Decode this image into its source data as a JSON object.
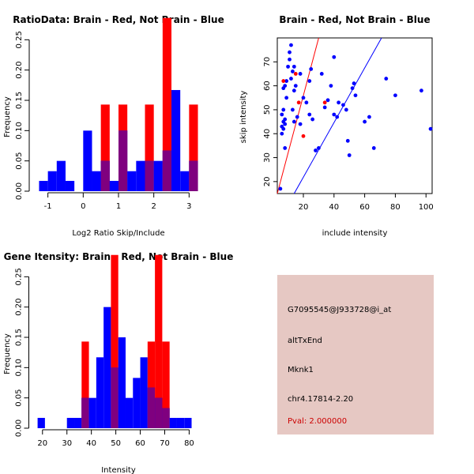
{
  "colors": {
    "red": "#ff0000",
    "blue": "#0000ff",
    "purple": "#7f007f",
    "panel_bg": "#e6c8c3",
    "pval": "#cc0000"
  },
  "chart_data": [
    {
      "type": "bar",
      "title": "RatioData: Brain - Red, Not Brain - Blue",
      "xlabel": "Log2 Ratio Skip/Include",
      "ylabel": "Frequency",
      "xlim": [
        -1.35,
        3.35
      ],
      "ylim": [
        0,
        0.3
      ],
      "xticks": [
        -1,
        0,
        1,
        2,
        3
      ],
      "yticks": [
        0.0,
        0.05,
        0.1,
        0.15,
        0.2,
        0.25
      ],
      "ytick_labels": [
        "0.00",
        "0.05",
        "0.10",
        "0.15",
        "0.20",
        "0.25"
      ],
      "bin_edges": [
        -1.25,
        -1.0,
        -0.75,
        -0.5,
        -0.25,
        0.0,
        0.25,
        0.5,
        0.75,
        1.0,
        1.25,
        1.5,
        1.75,
        2.0,
        2.25,
        2.5,
        2.75,
        3.0,
        3.25
      ],
      "series": [
        {
          "name": "Brain",
          "color": "red",
          "values": [
            0,
            0,
            0,
            0,
            0,
            0,
            0,
            0.143,
            0,
            0.143,
            0,
            0,
            0.143,
            0,
            0.286,
            0,
            0,
            0.143
          ]
        },
        {
          "name": "Not Brain",
          "color": "blue",
          "values": [
            0.017,
            0.033,
            0.05,
            0.017,
            0,
            0.1,
            0.033,
            0.05,
            0.017,
            0.1,
            0.033,
            0.05,
            0.05,
            0.05,
            0.067,
            0.167,
            0.033,
            0.05
          ]
        }
      ]
    },
    {
      "type": "scatter",
      "title": "Brain - Red, Not Brain - Blue",
      "xlabel": "include intensity",
      "ylabel": "skip intensity",
      "xlim": [
        3,
        104
      ],
      "ylim": [
        15,
        80
      ],
      "xticks": [
        20,
        40,
        60,
        80,
        100
      ],
      "yticks": [
        20,
        30,
        40,
        50,
        60,
        70
      ],
      "lines": [
        {
          "color": "red",
          "from": [
            3,
            15
          ],
          "to": [
            30,
            80
          ]
        },
        {
          "color": "blue",
          "from": [
            14,
            15
          ],
          "to": [
            71,
            80
          ]
        }
      ],
      "series": [
        {
          "name": "Not Brain",
          "color": "blue",
          "points": [
            [
              5,
              17
            ],
            [
              6,
              40
            ],
            [
              6,
              43
            ],
            [
              7,
              45
            ],
            [
              6,
              48
            ],
            [
              7,
              42
            ],
            [
              8,
              44
            ],
            [
              7,
              50
            ],
            [
              8,
              46
            ],
            [
              9,
              55
            ],
            [
              7,
              59
            ],
            [
              8,
              60
            ],
            [
              9,
              62
            ],
            [
              10,
              68
            ],
            [
              11,
              71
            ],
            [
              11,
              74
            ],
            [
              12,
              77
            ],
            [
              12,
              63
            ],
            [
              13,
              66
            ],
            [
              14,
              68
            ],
            [
              14,
              58
            ],
            [
              15,
              60
            ],
            [
              13,
              50
            ],
            [
              14,
              45
            ],
            [
              16,
              47
            ],
            [
              18,
              44
            ],
            [
              18,
              65
            ],
            [
              20,
              55
            ],
            [
              22,
              53
            ],
            [
              24,
              62
            ],
            [
              25,
              67
            ],
            [
              24,
              48
            ],
            [
              26,
              46
            ],
            [
              28,
              33
            ],
            [
              30,
              34
            ],
            [
              32,
              65
            ],
            [
              34,
              51
            ],
            [
              36,
              54
            ],
            [
              38,
              60
            ],
            [
              40,
              72
            ],
            [
              40,
              48
            ],
            [
              42,
              47
            ],
            [
              43,
              53
            ],
            [
              46,
              52
            ],
            [
              48,
              50
            ],
            [
              49,
              37
            ],
            [
              50,
              31
            ],
            [
              52,
              59
            ],
            [
              53,
              61
            ],
            [
              54,
              56
            ],
            [
              60,
              45
            ],
            [
              63,
              47
            ],
            [
              66,
              34
            ],
            [
              74,
              63
            ],
            [
              80,
              56
            ],
            [
              97,
              58
            ],
            [
              103,
              42
            ],
            [
              8,
              34
            ]
          ]
        },
        {
          "name": "Brain",
          "color": "red",
          "points": [
            [
              7,
              62
            ],
            [
              15,
              65
            ],
            [
              17,
              53
            ],
            [
              20,
              39
            ],
            [
              34,
              53
            ]
          ]
        }
      ]
    },
    {
      "type": "bar",
      "title": "Gene Itensity: Brain - Red, Not Brain - Blue",
      "xlabel": "Intensity",
      "ylabel": "Frequency",
      "xlim": [
        17,
        86
      ],
      "ylim": [
        0,
        0.3
      ],
      "xticks": [
        20,
        30,
        40,
        50,
        60,
        70,
        80
      ],
      "yticks": [
        0.0,
        0.05,
        0.1,
        0.15,
        0.2,
        0.25
      ],
      "ytick_labels": [
        "0.00",
        "0.05",
        "0.10",
        "0.15",
        "0.20",
        "0.25"
      ],
      "bin_edges": [
        18,
        21,
        24,
        27,
        30,
        33,
        36,
        39,
        42,
        45,
        48,
        51,
        54,
        57,
        60,
        63,
        66,
        69,
        72,
        75,
        78,
        81,
        84
      ],
      "series": [
        {
          "name": "Brain",
          "color": "red",
          "values": [
            0,
            0,
            0,
            0,
            0,
            0,
            0.143,
            0,
            0,
            0,
            0.286,
            0,
            0,
            0,
            0,
            0.143,
            0.286,
            0.143,
            0,
            0,
            0,
            0
          ]
        },
        {
          "name": "Not Brain",
          "color": "blue",
          "values": [
            0.017,
            0,
            0,
            0,
            0.017,
            0.017,
            0.05,
            0.05,
            0.117,
            0.2,
            0.1,
            0.15,
            0.05,
            0.083,
            0.117,
            0.067,
            0.05,
            0.033,
            0.017,
            0.017,
            0.017,
            0
          ]
        }
      ]
    }
  ],
  "info_panel": {
    "probe_id": "G7095545@J933728@i_at",
    "event_type": "altTxEnd",
    "gene": "Mknk1",
    "location": "chr4.17814-2.20",
    "pval": "Pval: 2.000000"
  }
}
